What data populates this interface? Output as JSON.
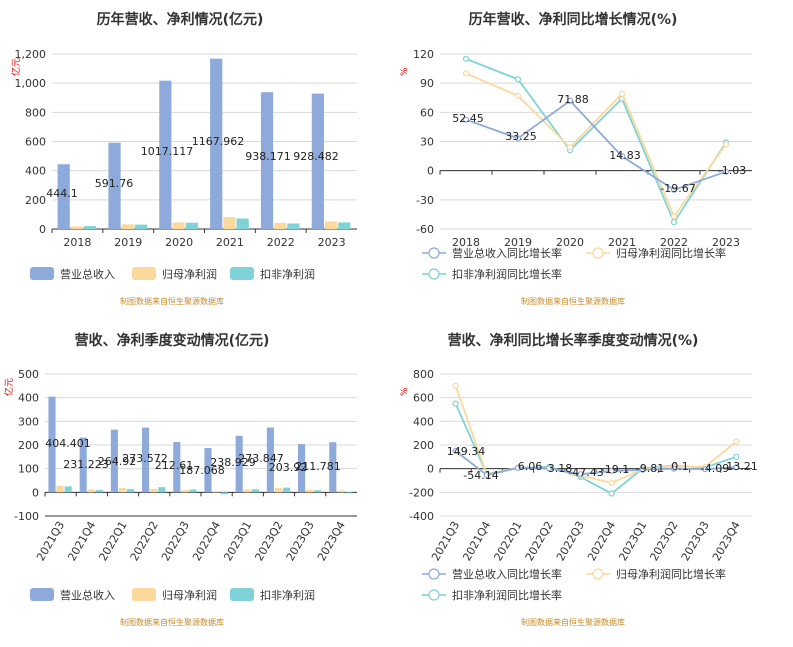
{
  "source_note": "制图数据来自恒生聚源数据库",
  "colors": {
    "revenue": "#8eaadb",
    "parent": "#fbd89b",
    "deducted": "#7fd3d8"
  },
  "chart_data": [
    {
      "id": "c1",
      "type": "bar",
      "title": "历年营收、净利情况(亿元)",
      "ylabel": "亿元",
      "ylim": [
        0,
        1200
      ],
      "yticks": [
        "0",
        "200",
        "400",
        "600",
        "800",
        "1,000",
        "1,200"
      ],
      "categories": [
        "2018",
        "2019",
        "2020",
        "2021",
        "2022",
        "2023"
      ],
      "series": [
        {
          "name": "营业总收入",
          "values": [
            444.1,
            591.76,
            1017.117,
            1167.962,
            938.171,
            928.482
          ],
          "labels": [
            "444.1",
            "591.76",
            "1017.117",
            "1167.962",
            "938.171",
            "928.482"
          ]
        },
        {
          "name": "归母净利润",
          "values": [
            18,
            32,
            45,
            82,
            42,
            52
          ]
        },
        {
          "name": "扣非净利润",
          "values": [
            20,
            30,
            43,
            72,
            38,
            45
          ]
        }
      ]
    },
    {
      "id": "c2",
      "type": "line",
      "title": "历年营收、净利同比增长情况(%)",
      "ylabel": "%",
      "ylim": [
        -60,
        120
      ],
      "yticks": [
        "-60",
        "-30",
        "0",
        "30",
        "60",
        "90",
        "120"
      ],
      "categories": [
        "2018",
        "2019",
        "2020",
        "2021",
        "2022",
        "2023"
      ],
      "series": [
        {
          "name": "营业总收入同比增长率",
          "values": [
            52.45,
            33.25,
            71.88,
            14.83,
            -19.67,
            -1.03
          ],
          "labels": [
            "52.45",
            "33.25",
            "71.88",
            "14.83",
            "-19.67",
            "-1.03"
          ]
        },
        {
          "name": "归母净利润同比增长率",
          "values": [
            100,
            77,
            24,
            79,
            -47,
            27
          ]
        },
        {
          "name": "扣非净利润同比增长率",
          "values": [
            115,
            94,
            21,
            74,
            -53,
            29
          ]
        }
      ]
    },
    {
      "id": "c3",
      "type": "bar",
      "title": "营收、净利季度变动情况(亿元)",
      "ylabel": "亿元",
      "ylim": [
        -100,
        500
      ],
      "yticks": [
        "-100",
        "0",
        "100",
        "200",
        "300",
        "400",
        "500"
      ],
      "categories": [
        "2021Q3",
        "2021Q4",
        "2022Q1",
        "2022Q2",
        "2022Q3",
        "2022Q4",
        "2023Q1",
        "2023Q2",
        "2023Q3",
        "2023Q4"
      ],
      "series": [
        {
          "name": "营业总收入",
          "values": [
            404.401,
            231.223,
            264.92,
            273.572,
            212.61,
            187.068,
            238.929,
            273.847,
            203.92,
            211.781
          ],
          "labels": [
            "404.401",
            "231.223",
            "264.92",
            "273.572",
            "212.61",
            "187.068",
            "238.929",
            "273.847",
            "203.92",
            "211.781"
          ]
        },
        {
          "name": "归母净利润",
          "values": [
            28,
            12,
            18,
            14,
            10,
            5,
            12,
            18,
            11,
            8
          ]
        },
        {
          "name": "扣非净利润",
          "values": [
            25,
            10,
            14,
            22,
            12,
            -8,
            13,
            20,
            9,
            -2
          ]
        }
      ]
    },
    {
      "id": "c4",
      "type": "line",
      "title": "营收、净利同比增长率季度变动情况(%)",
      "ylabel": "%",
      "ylim": [
        -400,
        800
      ],
      "yticks": [
        "-400",
        "-200",
        "0",
        "200",
        "400",
        "600",
        "800"
      ],
      "categories": [
        "2021Q3",
        "2021Q4",
        "2022Q1",
        "2022Q2",
        "2022Q3",
        "2022Q4",
        "2023Q1",
        "2023Q2",
        "2023Q3",
        "2023Q4"
      ],
      "series": [
        {
          "name": "营业总收入同比增长率",
          "values": [
            149.34,
            -54.14,
            6.06,
            3.18,
            -47.43,
            -19.1,
            -9.81,
            0.1,
            -4.09,
            13.21
          ],
          "labels": [
            "149.34",
            "-54.14",
            "6.06",
            "3.18",
            "-47.43",
            "-19.1",
            "-9.81",
            "0.1",
            "-4.09",
            "13.21"
          ]
        },
        {
          "name": "归母净利润同比增长率",
          "values": [
            700,
            -50,
            10,
            5,
            -60,
            -120,
            -5,
            20,
            15,
            230
          ]
        },
        {
          "name": "扣非净利润同比增长率",
          "values": [
            550,
            -45,
            8,
            15,
            -70,
            -210,
            2,
            25,
            10,
            100
          ]
        }
      ]
    }
  ]
}
